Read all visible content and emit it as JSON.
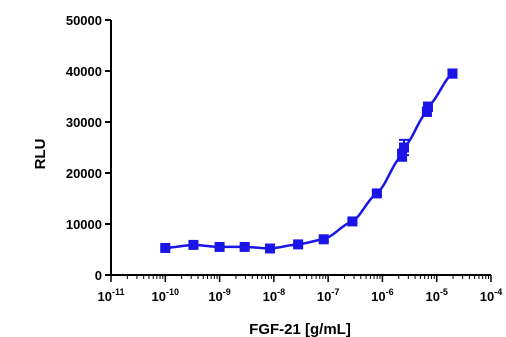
{
  "chart_data": {
    "type": "scatter",
    "title": "",
    "xlabel": "FGF-21 [g/mL]",
    "ylabel": "RLU",
    "x_scale": "log",
    "xlim": [
      1e-11,
      0.0001
    ],
    "ylim": [
      0,
      50000
    ],
    "x_ticks": [
      {
        "base": "10",
        "exp": "-11"
      },
      {
        "base": "10",
        "exp": "-10"
      },
      {
        "base": "10",
        "exp": "-9"
      },
      {
        "base": "10",
        "exp": "-8"
      },
      {
        "base": "10",
        "exp": "-7"
      },
      {
        "base": "10",
        "exp": "-6"
      },
      {
        "base": "10",
        "exp": "-5"
      },
      {
        "base": "10",
        "exp": "-4"
      }
    ],
    "y_ticks": [
      "0",
      "10000",
      "20000",
      "30000",
      "40000",
      "50000"
    ],
    "grid": false,
    "legend": false,
    "series": [
      {
        "color": "#1a14e6",
        "marker": "square",
        "fit_curve": true,
        "points": [
          {
            "x": 1e-10,
            "y": 5300,
            "err": 250
          },
          {
            "x": 3.3e-10,
            "y": 5900,
            "err": 250
          },
          {
            "x": 1e-09,
            "y": 5500,
            "err": 250
          },
          {
            "x": 2.9e-09,
            "y": 5500,
            "err": 250
          },
          {
            "x": 8.5e-09,
            "y": 5200,
            "err": 250
          },
          {
            "x": 2.8e-08,
            "y": 6000,
            "err": 250
          },
          {
            "x": 8.3e-08,
            "y": 7000,
            "err": 300
          },
          {
            "x": 2.8e-07,
            "y": 10500,
            "err": 300
          },
          {
            "x": 7.9e-07,
            "y": 16000,
            "err": 400
          },
          {
            "x": 2.3e-06,
            "y": 23500,
            "err": 1100
          },
          {
            "x": 2.5e-06,
            "y": 25000,
            "err": 1500
          },
          {
            "x": 6.6e-06,
            "y": 32000,
            "err": 800
          },
          {
            "x": 6.9e-06,
            "y": 33000,
            "err": 800
          },
          {
            "x": 1.95e-05,
            "y": 39500,
            "err": 800
          }
        ]
      }
    ]
  }
}
